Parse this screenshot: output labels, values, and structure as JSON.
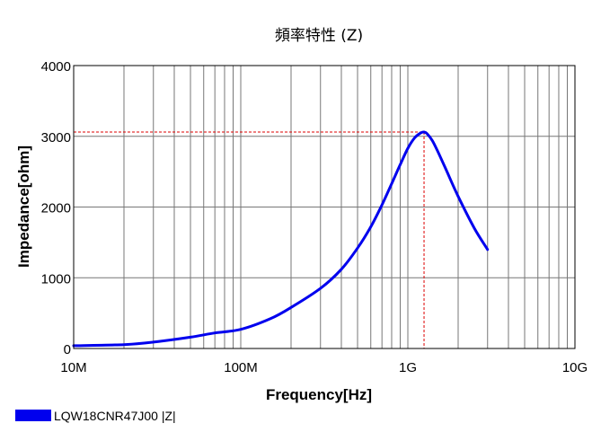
{
  "chart_data": {
    "type": "line",
    "title": "頻率特性 (Z)",
    "xlabel": "Frequency[Hz]",
    "ylabel": "Impedance[ohm]",
    "x_scale": "log",
    "xlim": [
      10000000,
      10000000000
    ],
    "ylim": [
      0,
      4000
    ],
    "grid": true,
    "x_ticks": [
      {
        "value": 10000000,
        "label": "10M"
      },
      {
        "value": 100000000,
        "label": "100M"
      },
      {
        "value": 1000000000,
        "label": "1G"
      },
      {
        "value": 10000000000,
        "label": "10G"
      }
    ],
    "y_ticks": [
      {
        "value": 0,
        "label": "0"
      },
      {
        "value": 1000,
        "label": "1000"
      },
      {
        "value": 2000,
        "label": "2000"
      },
      {
        "value": 3000,
        "label": "3000"
      },
      {
        "value": 4000,
        "label": "4000"
      }
    ],
    "legend_position": "bottom-left",
    "series": [
      {
        "name": "LQW18CNR47J00 |Z|",
        "color": "#0000ee",
        "x": [
          10000000,
          20000000,
          30000000,
          50000000,
          70000000,
          100000000,
          150000000,
          200000000,
          300000000,
          400000000,
          500000000,
          600000000,
          700000000,
          800000000,
          900000000,
          1000000000,
          1100000000,
          1200000000,
          1250000000,
          1300000000,
          1400000000,
          1500000000,
          1700000000,
          2000000000,
          2500000000,
          3000000000
        ],
        "y": [
          40,
          55,
          90,
          160,
          220,
          270,
          420,
          580,
          850,
          1120,
          1420,
          1720,
          2030,
          2330,
          2600,
          2830,
          2980,
          3050,
          3060,
          3040,
          2940,
          2800,
          2520,
          2150,
          1700,
          1400
        ]
      }
    ],
    "annotations": [
      {
        "type": "peak-marker",
        "x": 1250000000,
        "y": 3060,
        "color": "#dd0000",
        "style": "dashed"
      }
    ]
  }
}
